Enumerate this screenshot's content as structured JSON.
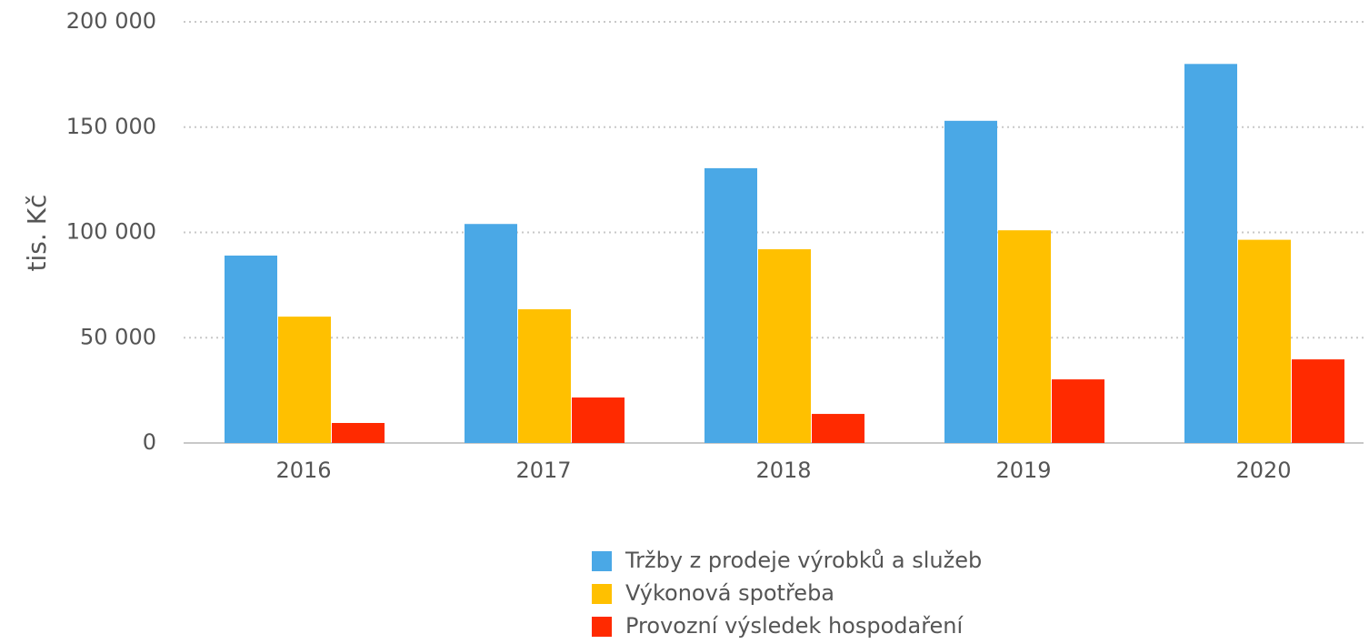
{
  "chart_data": {
    "type": "bar",
    "ylabel": "tis. Kč",
    "categories": [
      "2016",
      "2017",
      "2018",
      "2019",
      "2020"
    ],
    "series": [
      {
        "name": "Tržby z prodeje výrobků a služeb",
        "color": "#4aa8e6",
        "values": [
          89000,
          104000,
          130500,
          153000,
          180000
        ]
      },
      {
        "name": "Výkonová spotřeba",
        "color": "#ffc000",
        "values": [
          60000,
          63500,
          92000,
          101000,
          96500
        ]
      },
      {
        "name": "Provozní výsledek hospodaření",
        "color": "#ff2a00",
        "values": [
          9500,
          21600,
          13800,
          30200,
          39700
        ]
      }
    ],
    "ylim": [
      0,
      200000
    ],
    "yticks": [
      0,
      {
        "value": 50000,
        "label": "50 000"
      },
      {
        "value": 100000,
        "label": "100 000"
      },
      {
        "value": 150000,
        "label": "150 000"
      },
      {
        "value": 200000,
        "label": "200 000"
      }
    ],
    "grid": true,
    "legend": "bottom"
  }
}
